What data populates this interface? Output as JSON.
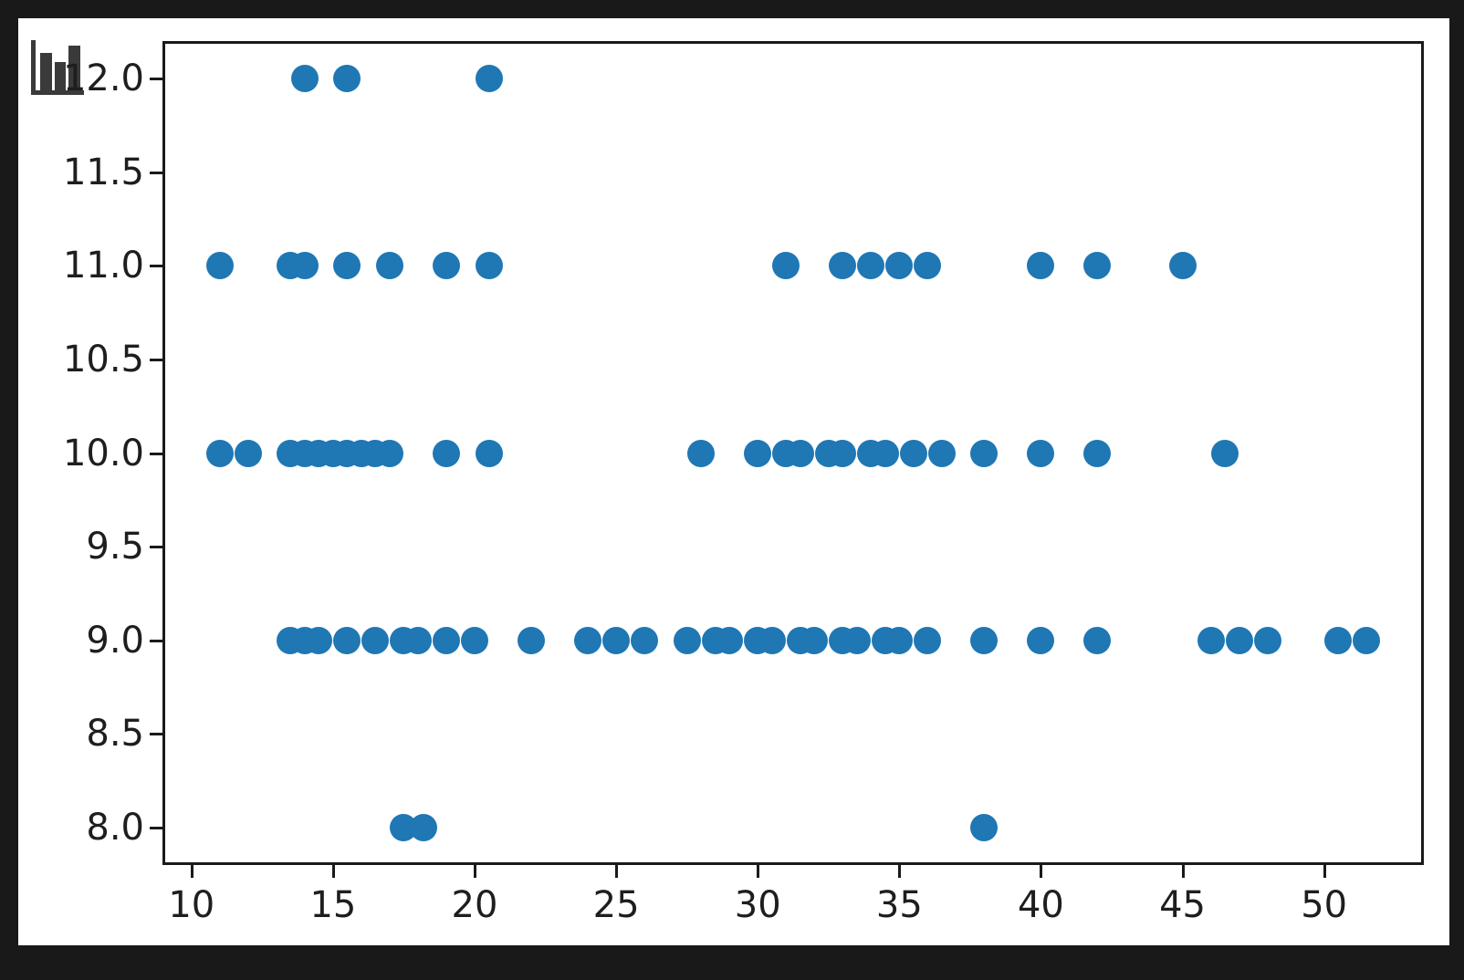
{
  "window": {
    "background_color": "#191919",
    "panel_color": "#ffffff"
  },
  "icons": {
    "corner_icon": "bar-chart-icon",
    "corner_icon_color": "#3a3a3a"
  },
  "chart_data": {
    "type": "scatter",
    "title": "",
    "xlabel": "",
    "ylabel": "",
    "grid": false,
    "legend": null,
    "marker_color": "#1f77b4",
    "axes_color": "#1a1a1a",
    "xlim": [
      8.975,
      53.525
    ],
    "ylim": [
      7.8,
      12.2
    ],
    "x_ticks": [
      10,
      15,
      20,
      25,
      30,
      35,
      40,
      45,
      50
    ],
    "x_tick_labels": [
      "10",
      "15",
      "20",
      "25",
      "30",
      "35",
      "40",
      "45",
      "50"
    ],
    "y_ticks": [
      8.0,
      8.5,
      9.0,
      9.5,
      10.0,
      10.5,
      11.0,
      11.5,
      12.0
    ],
    "y_tick_labels": [
      "8.0",
      "8.5",
      "9.0",
      "9.5",
      "10.0",
      "10.5",
      "11.0",
      "11.5",
      "12.0"
    ],
    "series": [
      {
        "y": 12,
        "x": [
          14,
          15.5,
          20.5
        ]
      },
      {
        "y": 11,
        "x": [
          11,
          13.5,
          14,
          15.5,
          17,
          19,
          20.5,
          31,
          33,
          34,
          35,
          36,
          40,
          42,
          45
        ]
      },
      {
        "y": 10,
        "x": [
          11,
          12,
          13.5,
          14,
          14.5,
          15,
          15.5,
          16,
          16.5,
          17,
          19,
          20.5,
          28,
          30,
          31,
          31.5,
          32.5,
          33,
          34,
          34.5,
          35.5,
          36.5,
          38,
          40,
          42,
          46.5
        ]
      },
      {
        "y": 9,
        "x": [
          13.5,
          14,
          14.5,
          15.5,
          16.5,
          17.5,
          18,
          19,
          20,
          22,
          24,
          25,
          26,
          27.5,
          28.5,
          29,
          30,
          30.5,
          31.5,
          32,
          33,
          33.5,
          34.5,
          35,
          36,
          38,
          40,
          42,
          46,
          47,
          48,
          50.5,
          51.5
        ]
      },
      {
        "y": 8,
        "x": [
          17.5,
          18.2,
          38
        ]
      }
    ]
  }
}
